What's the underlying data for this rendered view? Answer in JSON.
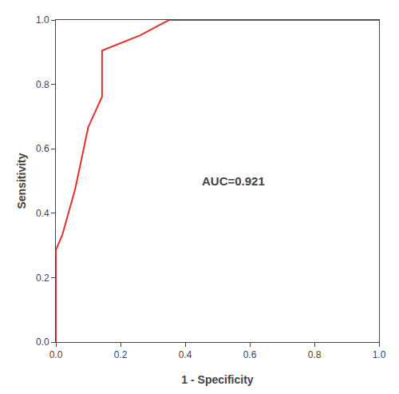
{
  "chart_data": {
    "type": "line",
    "x": [
      0.0,
      0.0,
      0.02,
      0.06,
      0.1,
      0.143,
      0.143,
      0.155,
      0.19,
      0.26,
      0.35,
      1.0
    ],
    "values": [
      0.0,
      0.286,
      0.333,
      0.476,
      0.667,
      0.762,
      0.905,
      0.91,
      0.924,
      0.952,
      1.0,
      1.0
    ],
    "color": "#e03030",
    "xlabel": "1 - Specificity",
    "ylabel": "Sensitivity",
    "annotations": [
      {
        "text": "AUC=0.921",
        "x": 0.55,
        "y": 0.5
      }
    ],
    "xlim": [
      0.0,
      1.0
    ],
    "ylim": [
      0.0,
      1.0
    ],
    "xticks": [
      {
        "value": 0.0,
        "label": "0.0"
      },
      0.2,
      0.4,
      0.6,
      0.8,
      {
        "value": 1.0,
        "label": "1.0"
      }
    ],
    "yticks": [
      {
        "value": 0.0,
        "label": "0.0"
      },
      0.2,
      0.4,
      0.6,
      0.8,
      {
        "value": 1.0,
        "label": "1.0"
      }
    ],
    "grid": false
  }
}
